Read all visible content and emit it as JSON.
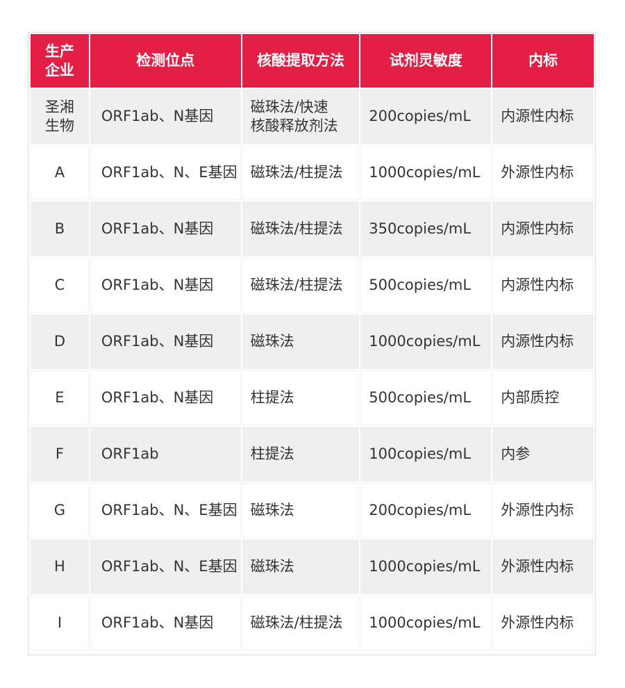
{
  "colors": {
    "header": "#e41f45",
    "stripe": "#efefef"
  },
  "headers": [
    "生产\n企业",
    "检测位点",
    "核酸提取方法",
    "试剂灵敏度",
    "内标"
  ],
  "rows": [
    [
      "圣湘\n生物",
      "ORF1ab、N基因",
      "磁珠法/快速\n核酸释放剂法",
      "200copies/mL",
      "内源性内标"
    ],
    [
      "A",
      "ORF1ab、N、E基因",
      "磁珠法/柱提法",
      "1000copies/mL",
      "外源性内标"
    ],
    [
      "B",
      "ORF1ab、N基因",
      "磁珠法/柱提法",
      "350copies/mL",
      "内源性内标"
    ],
    [
      "C",
      "ORF1ab、N基因",
      "磁珠法/柱提法",
      "500copies/mL",
      "内源性内标"
    ],
    [
      "D",
      "ORF1ab、N基因",
      "磁珠法",
      "1000copies/mL",
      "内源性内标"
    ],
    [
      "E",
      "ORF1ab、N基因",
      "柱提法",
      "500copies/mL",
      "内部质控"
    ],
    [
      "F",
      "ORF1ab",
      "柱提法",
      "100copies/mL",
      "内参"
    ],
    [
      "G",
      "ORF1ab、N、E基因",
      "磁珠法",
      "200copies/mL",
      "外源性内标"
    ],
    [
      "H",
      "ORF1ab、N、E基因",
      "磁珠法",
      "1000copies/mL",
      "外源性内标"
    ],
    [
      "I",
      "ORF1ab、N基因",
      "磁珠法/柱提法",
      "1000copies/mL",
      "外源性内标"
    ]
  ]
}
